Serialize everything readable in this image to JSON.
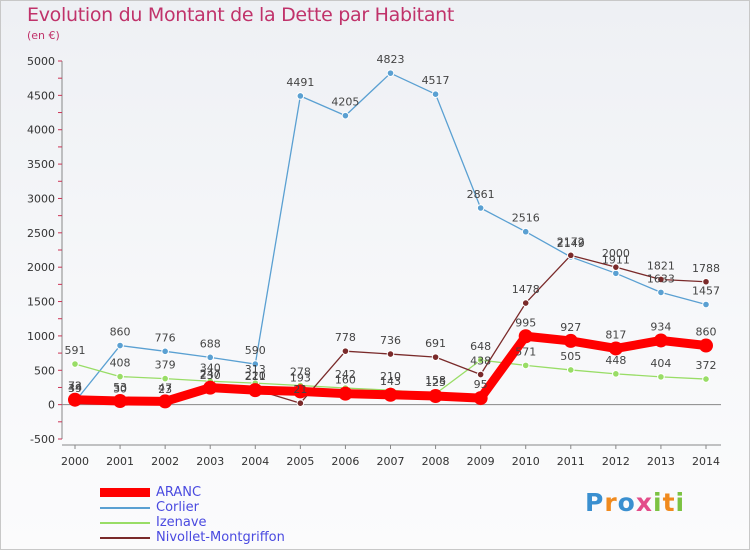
{
  "chart_data": {
    "type": "line",
    "title": "Evolution du Montant de la Dette par Habitant",
    "subtitle": "(en €)",
    "x": [
      2000,
      2001,
      2002,
      2003,
      2004,
      2005,
      2006,
      2007,
      2008,
      2009,
      2010,
      2011,
      2012,
      2013,
      2014
    ],
    "ylim": [
      -500,
      5000
    ],
    "yticks": [
      -500,
      0,
      500,
      1000,
      1500,
      2000,
      2500,
      3000,
      3500,
      4000,
      4500,
      5000
    ],
    "grid": false,
    "legend_position": "bottom-left",
    "series": [
      {
        "name": "ARANC",
        "color": "#ff0000",
        "values": [
          72,
          53,
          47,
          247,
          211,
          193,
          160,
          143,
          125,
          95,
          995,
          927,
          817,
          934,
          860
        ]
      },
      {
        "name": "Corlier",
        "color": "#5aa0d2",
        "values": [
          44,
          860,
          776,
          688,
          590,
          4491,
          4205,
          4823,
          4517,
          2861,
          2516,
          2149,
          1911,
          1633,
          1457
        ]
      },
      {
        "name": "Izenave",
        "color": "#99dd66",
        "values": [
          591,
          408,
          379,
          340,
          313,
          278,
          242,
          210,
          158,
          648,
          571,
          505,
          448,
          404,
          372
        ]
      },
      {
        "name": "Nivollet-Montgriffon",
        "color": "#7a2a2a",
        "values": [
          39,
          30,
          23,
          230,
          220,
          21,
          778,
          736,
          691,
          438,
          1478,
          2172,
          2000,
          1821,
          1788
        ]
      }
    ],
    "point_labels": [
      [
        "72",
        "53",
        "47",
        "247",
        "211",
        "193",
        "160",
        "143",
        "125",
        "95",
        "995",
        "927",
        "817",
        "934",
        "860"
      ],
      [
        "44",
        "860",
        "776",
        "688",
        "590",
        "4491",
        "4205",
        "4823",
        "4517",
        "2861",
        "2516",
        "2149",
        "1911",
        "1633",
        "1457"
      ],
      [
        "591",
        "408",
        "379",
        "340",
        "313",
        "278",
        "242",
        "210",
        "158",
        "648",
        "571",
        "505",
        "448",
        "404",
        "372"
      ],
      [
        "39",
        "30",
        "23",
        "230",
        "220",
        "21",
        "778",
        "736",
        "691",
        "438",
        "1478",
        "2172",
        "2000",
        "1821",
        "1788"
      ]
    ]
  },
  "legend": {
    "items": [
      {
        "label": "ARANC",
        "color": "#ff0000"
      },
      {
        "label": "Corlier",
        "color": "#5aa0d2"
      },
      {
        "label": "Izenave",
        "color": "#99dd66"
      },
      {
        "label": "Nivollet-Montgriffon",
        "color": "#7a2a2a"
      }
    ]
  },
  "logo": {
    "letters": [
      {
        "ch": "P",
        "color": "#3a8fd0"
      },
      {
        "ch": "r",
        "color": "#f08a1e"
      },
      {
        "ch": "o",
        "color": "#3a8fd0"
      },
      {
        "ch": "x",
        "color": "#e34c8a"
      },
      {
        "ch": "i",
        "color": "#7cc242"
      },
      {
        "ch": "t",
        "color": "#f08a1e"
      },
      {
        "ch": "i",
        "color": "#7cc242"
      }
    ]
  }
}
